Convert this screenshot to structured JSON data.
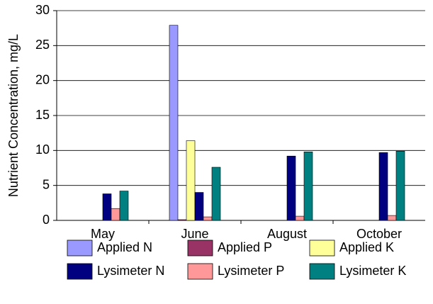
{
  "chart_data": {
    "type": "bar",
    "y_label": "Nutrient Concentration, mg/L",
    "categories": [
      "May",
      "June",
      "August",
      "October"
    ],
    "series": [
      {
        "name": "Applied N",
        "color": "#9999ff",
        "values": [
          0,
          27.9,
          0,
          0
        ]
      },
      {
        "name": "Applied P",
        "color": "#993366",
        "values": [
          0,
          0.1,
          0,
          0
        ]
      },
      {
        "name": "Applied K",
        "color": "#ffff99",
        "values": [
          0,
          11.4,
          0,
          0
        ]
      },
      {
        "name": "Lysimeter N",
        "color": "#000080",
        "values": [
          3.8,
          4.0,
          9.2,
          9.7
        ]
      },
      {
        "name": "Lysimeter P",
        "color": "#ff9999",
        "values": [
          1.7,
          0.5,
          0.6,
          0.7
        ]
      },
      {
        "name": "Lysimeter K",
        "color": "#008080",
        "values": [
          4.2,
          7.6,
          9.8,
          9.9
        ]
      }
    ],
    "ylim": [
      0,
      30
    ],
    "yticks": [
      0,
      5,
      10,
      15,
      20,
      25,
      30
    ],
    "grid": true,
    "legend": "bottom"
  }
}
